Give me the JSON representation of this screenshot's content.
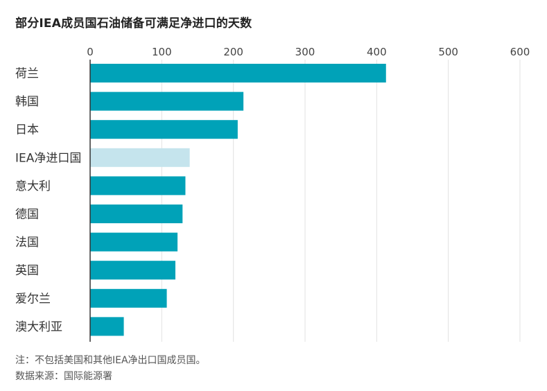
{
  "chart_data": {
    "type": "bar",
    "orientation": "horizontal",
    "title": "部分IEA成员国石油储备可满足净进口的天数",
    "categories": [
      "荷兰",
      "韩国",
      "日本",
      "IEA净进口国",
      "意大利",
      "德国",
      "法国",
      "英国",
      "爱尔兰",
      "澳大利亚"
    ],
    "values": [
      413,
      214,
      206,
      139,
      133,
      129,
      122,
      119,
      107,
      47
    ],
    "highlight_category": "IEA净进口国",
    "xlim": [
      0,
      600
    ],
    "xticks": [
      0,
      100,
      200,
      300,
      400,
      500,
      600
    ],
    "x_axis_position": "top",
    "grid": "vertical",
    "colors": {
      "bar": "#00a2b8",
      "highlight": "#c5e4ed",
      "grid": "#e2e2e2",
      "axis": "#333333"
    }
  },
  "notes": {
    "note": "注：不包括美国和其他IEA净出口国成员国。",
    "source": "数据来源：国际能源署"
  }
}
